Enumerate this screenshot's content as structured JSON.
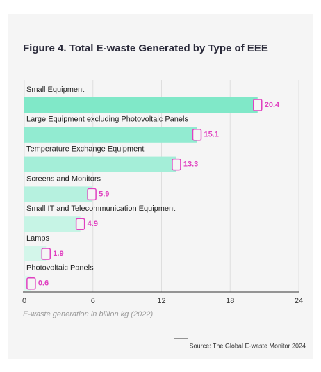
{
  "chart_data": {
    "type": "bar",
    "orientation": "horizontal",
    "title": "Figure 4. Total E-waste Generated by Type of EEE",
    "categories": [
      "Small Equipment",
      "Large Equipment excluding Photovoltaic Panels",
      "Temperature Exchange Equipment",
      "Screens and Monitors",
      "Small IT and Telecommunication Equipment",
      "Lamps",
      "Photovoltaic Panels"
    ],
    "values": [
      20.4,
      15.1,
      13.3,
      5.9,
      4.9,
      1.9,
      0.6
    ],
    "colors": [
      "#80e8c8",
      "#92ebd1",
      "#a4eed8",
      "#b6f1df",
      "#c6f4e5",
      "#d3f6ea",
      "#dff8ef"
    ],
    "label_color": "#e040c0",
    "xlim": [
      0,
      24
    ],
    "xticks": [
      0,
      6,
      12,
      18,
      24
    ],
    "grid": true,
    "xlabel": "E-waste generation in billion kg (2022)",
    "source": "Source: The Global E-waste Monitor 2024"
  }
}
